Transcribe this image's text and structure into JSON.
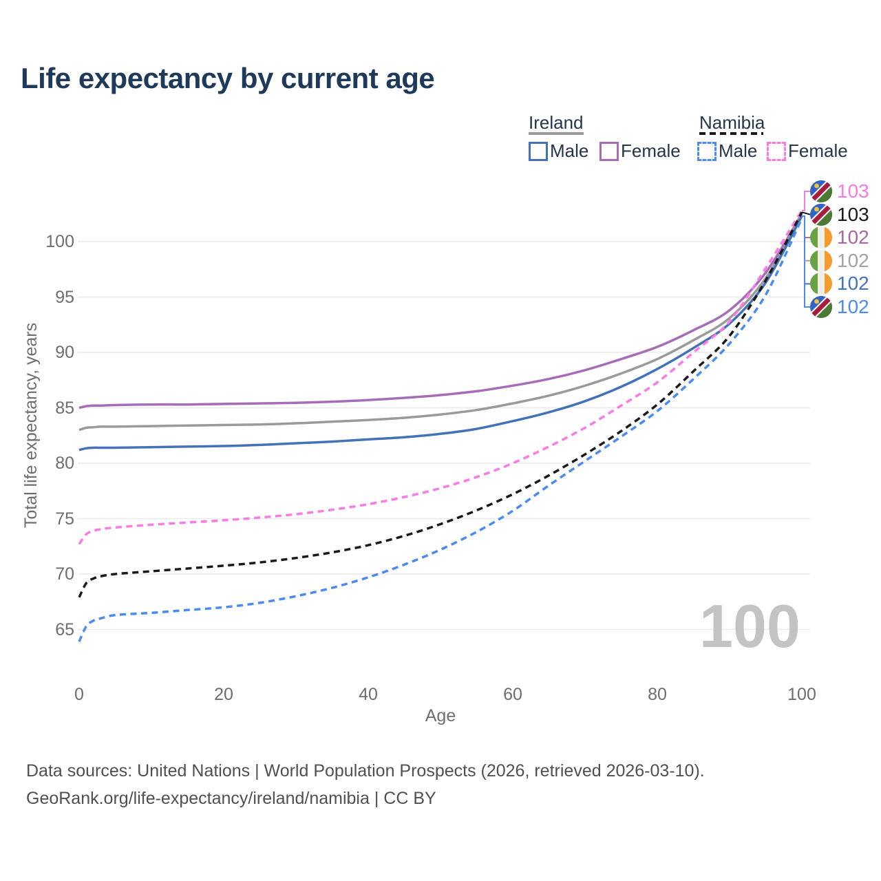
{
  "title": "Life expectancy by current age",
  "watermark": "100",
  "legend": {
    "groups": [
      {
        "label": "Ireland",
        "line_style": "solid",
        "underline_color": "#9a9a9a"
      },
      {
        "label": "Namibia",
        "line_style": "dashed",
        "underline_color": "#1a1a1a"
      }
    ],
    "items": [
      {
        "label": "Male",
        "color": "#4472b8",
        "dashed": false
      },
      {
        "label": "Female",
        "color": "#a76cb8",
        "dashed": false
      },
      {
        "label": "Male",
        "color": "#4a8af4",
        "dashed": true
      },
      {
        "label": "Female",
        "color": "#fb7be4",
        "dashed": true
      }
    ]
  },
  "end_labels": [
    {
      "flag": "namibia",
      "value": "103",
      "color": "#f97be0",
      "series": "namibia_female"
    },
    {
      "flag": "namibia",
      "value": "103",
      "color": "#1a1a1a",
      "series": "namibia_all"
    },
    {
      "flag": "ireland",
      "value": "102",
      "color": "#a8679f",
      "series": "ireland_female"
    },
    {
      "flag": "ireland",
      "value": "102",
      "color": "#a3a3a3",
      "series": "ireland_all"
    },
    {
      "flag": "ireland",
      "value": "102",
      "color": "#4472c4",
      "series": "ireland_male"
    },
    {
      "flag": "namibia",
      "value": "102",
      "color": "#4a8af4",
      "series": "namibia_male"
    }
  ],
  "footer": {
    "line1": "Data sources: United Nations | World Population Prospects (2026, retrieved 2026-03-10).",
    "line2": "GeoRank.org/life-expectancy/ireland/namibia | CC BY"
  },
  "chart_data": {
    "type": "line",
    "title": "Life expectancy by current age",
    "xlabel": "Age",
    "ylabel": "Total life expectancy, years",
    "xlim": [
      0,
      100
    ],
    "ylim": [
      63,
      104
    ],
    "xticks": [
      0,
      20,
      40,
      60,
      80,
      100
    ],
    "yticks": [
      65,
      70,
      75,
      80,
      85,
      90,
      95,
      100
    ],
    "grid": "horizontal",
    "legend_position": "top-right",
    "x": [
      0,
      1,
      2,
      3,
      5,
      10,
      15,
      20,
      25,
      30,
      35,
      40,
      45,
      50,
      55,
      60,
      65,
      70,
      75,
      80,
      85,
      90,
      95,
      100
    ],
    "series": [
      {
        "id": "ireland_female",
        "name": "Ireland Female",
        "country": "Ireland",
        "sex": "Female",
        "color": "#a76cb8",
        "dashed": false,
        "end_label": "102",
        "values": [
          85.0,
          85.15,
          85.2,
          85.2,
          85.25,
          85.3,
          85.3,
          85.35,
          85.4,
          85.45,
          85.55,
          85.7,
          85.9,
          86.15,
          86.5,
          87.0,
          87.6,
          88.4,
          89.4,
          90.5,
          92.0,
          93.8,
          97.2,
          102.5
        ]
      },
      {
        "id": "ireland_all",
        "name": "Ireland (all)",
        "country": "Ireland",
        "sex": "All",
        "color": "#9a9a9a",
        "dashed": false,
        "end_label": "102",
        "values": [
          83.0,
          83.2,
          83.25,
          83.3,
          83.3,
          83.35,
          83.4,
          83.45,
          83.5,
          83.6,
          83.75,
          83.9,
          84.1,
          84.4,
          84.8,
          85.4,
          86.1,
          87.0,
          88.1,
          89.4,
          91.1,
          93.1,
          96.7,
          102.4
        ]
      },
      {
        "id": "ireland_male",
        "name": "Ireland Male",
        "country": "Ireland",
        "sex": "Male",
        "color": "#4472b8",
        "dashed": false,
        "end_label": "102",
        "values": [
          81.2,
          81.35,
          81.4,
          81.4,
          81.4,
          81.45,
          81.5,
          81.55,
          81.65,
          81.8,
          81.95,
          82.15,
          82.35,
          82.65,
          83.1,
          83.8,
          84.6,
          85.6,
          86.9,
          88.5,
          90.4,
          92.6,
          96.3,
          102.3
        ]
      },
      {
        "id": "namibia_female",
        "name": "Namibia Female",
        "country": "Namibia",
        "sex": "Female",
        "color": "#fb7be4",
        "dashed": true,
        "end_label": "103",
        "values": [
          72.7,
          73.6,
          73.9,
          74.05,
          74.2,
          74.45,
          74.65,
          74.85,
          75.1,
          75.4,
          75.8,
          76.3,
          76.95,
          77.75,
          78.75,
          80.0,
          81.5,
          83.2,
          85.2,
          87.3,
          90.0,
          92.8,
          97.6,
          102.8
        ]
      },
      {
        "id": "namibia_all",
        "name": "Namibia (all)",
        "country": "Namibia",
        "sex": "All",
        "color": "#1a1a1a",
        "dashed": true,
        "end_label": "103",
        "values": [
          67.9,
          69.2,
          69.6,
          69.8,
          70.0,
          70.25,
          70.5,
          70.75,
          71.05,
          71.45,
          71.95,
          72.6,
          73.45,
          74.5,
          75.75,
          77.2,
          78.9,
          80.8,
          82.9,
          85.3,
          88.3,
          91.5,
          96.5,
          102.65
        ]
      },
      {
        "id": "namibia_male",
        "name": "Namibia Male",
        "country": "Namibia",
        "sex": "Male",
        "color": "#4a8af4",
        "dashed": true,
        "end_label": "102",
        "values": [
          63.9,
          65.3,
          65.8,
          66.0,
          66.3,
          66.5,
          66.75,
          67.0,
          67.4,
          68.0,
          68.75,
          69.7,
          70.85,
          72.2,
          73.8,
          75.7,
          78.0,
          80.2,
          82.4,
          84.7,
          87.6,
          90.8,
          95.2,
          102.1
        ]
      }
    ]
  }
}
